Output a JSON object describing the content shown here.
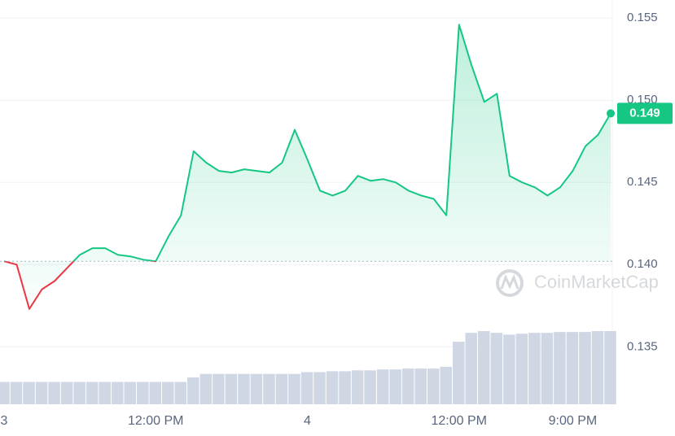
{
  "chart_data": {
    "type": "line",
    "categories": [
      "3",
      null,
      null,
      null,
      null,
      null,
      null,
      null,
      null,
      null,
      null,
      null,
      "12:00 PM",
      null,
      null,
      null,
      null,
      null,
      null,
      null,
      null,
      null,
      null,
      null,
      "4",
      null,
      null,
      null,
      null,
      null,
      null,
      null,
      null,
      null,
      null,
      null,
      "12:00 PM",
      null,
      null,
      null,
      null,
      null,
      null,
      null,
      null,
      "9:00 PM",
      null,
      null,
      null
    ],
    "series": [
      {
        "color": "#16c784",
        "down_color": "#ea3943",
        "values": [
          0.1402,
          0.14,
          0.1373,
          0.1385,
          0.139,
          0.1398,
          0.1406,
          0.141,
          0.141,
          0.1406,
          0.1405,
          0.1403,
          0.1402,
          0.1417,
          0.143,
          0.1469,
          0.1462,
          0.1457,
          0.1456,
          0.1458,
          0.1457,
          0.1456,
          0.1462,
          0.1482,
          0.1464,
          0.1445,
          0.1442,
          0.1445,
          0.1454,
          0.1451,
          0.1452,
          0.145,
          0.1445,
          0.1442,
          0.144,
          0.143,
          0.1546,
          0.1521,
          0.1499,
          0.1504,
          0.1454,
          0.145,
          0.1447,
          0.1442,
          0.1447,
          0.1457,
          0.1472,
          0.1479,
          0.1492
        ]
      }
    ],
    "volume": {
      "color": "#cfd6e4",
      "values": [
        25,
        25,
        25,
        25,
        25,
        25,
        25,
        25,
        25,
        25,
        25,
        25,
        25,
        25,
        25,
        30,
        34,
        34,
        34,
        34,
        34,
        34,
        34,
        34,
        36,
        36,
        37,
        37,
        38,
        38,
        39,
        39,
        40,
        40,
        40,
        42,
        70,
        80,
        82,
        80,
        78,
        79,
        80,
        80,
        81,
        81,
        81,
        82,
        82
      ]
    },
    "current_price_label": "0.149",
    "ylim": [
      0.1315,
      0.1561
    ],
    "yticks": [
      {
        "value": 0.135,
        "label": "0.135"
      },
      {
        "value": 0.14,
        "label": "0.140"
      },
      {
        "value": 0.145,
        "label": "0.145"
      },
      {
        "value": 0.15,
        "label": "0.150"
      },
      {
        "value": 0.155,
        "label": "0.155"
      }
    ],
    "grid": true,
    "watermark": "CoinMarketCap"
  }
}
